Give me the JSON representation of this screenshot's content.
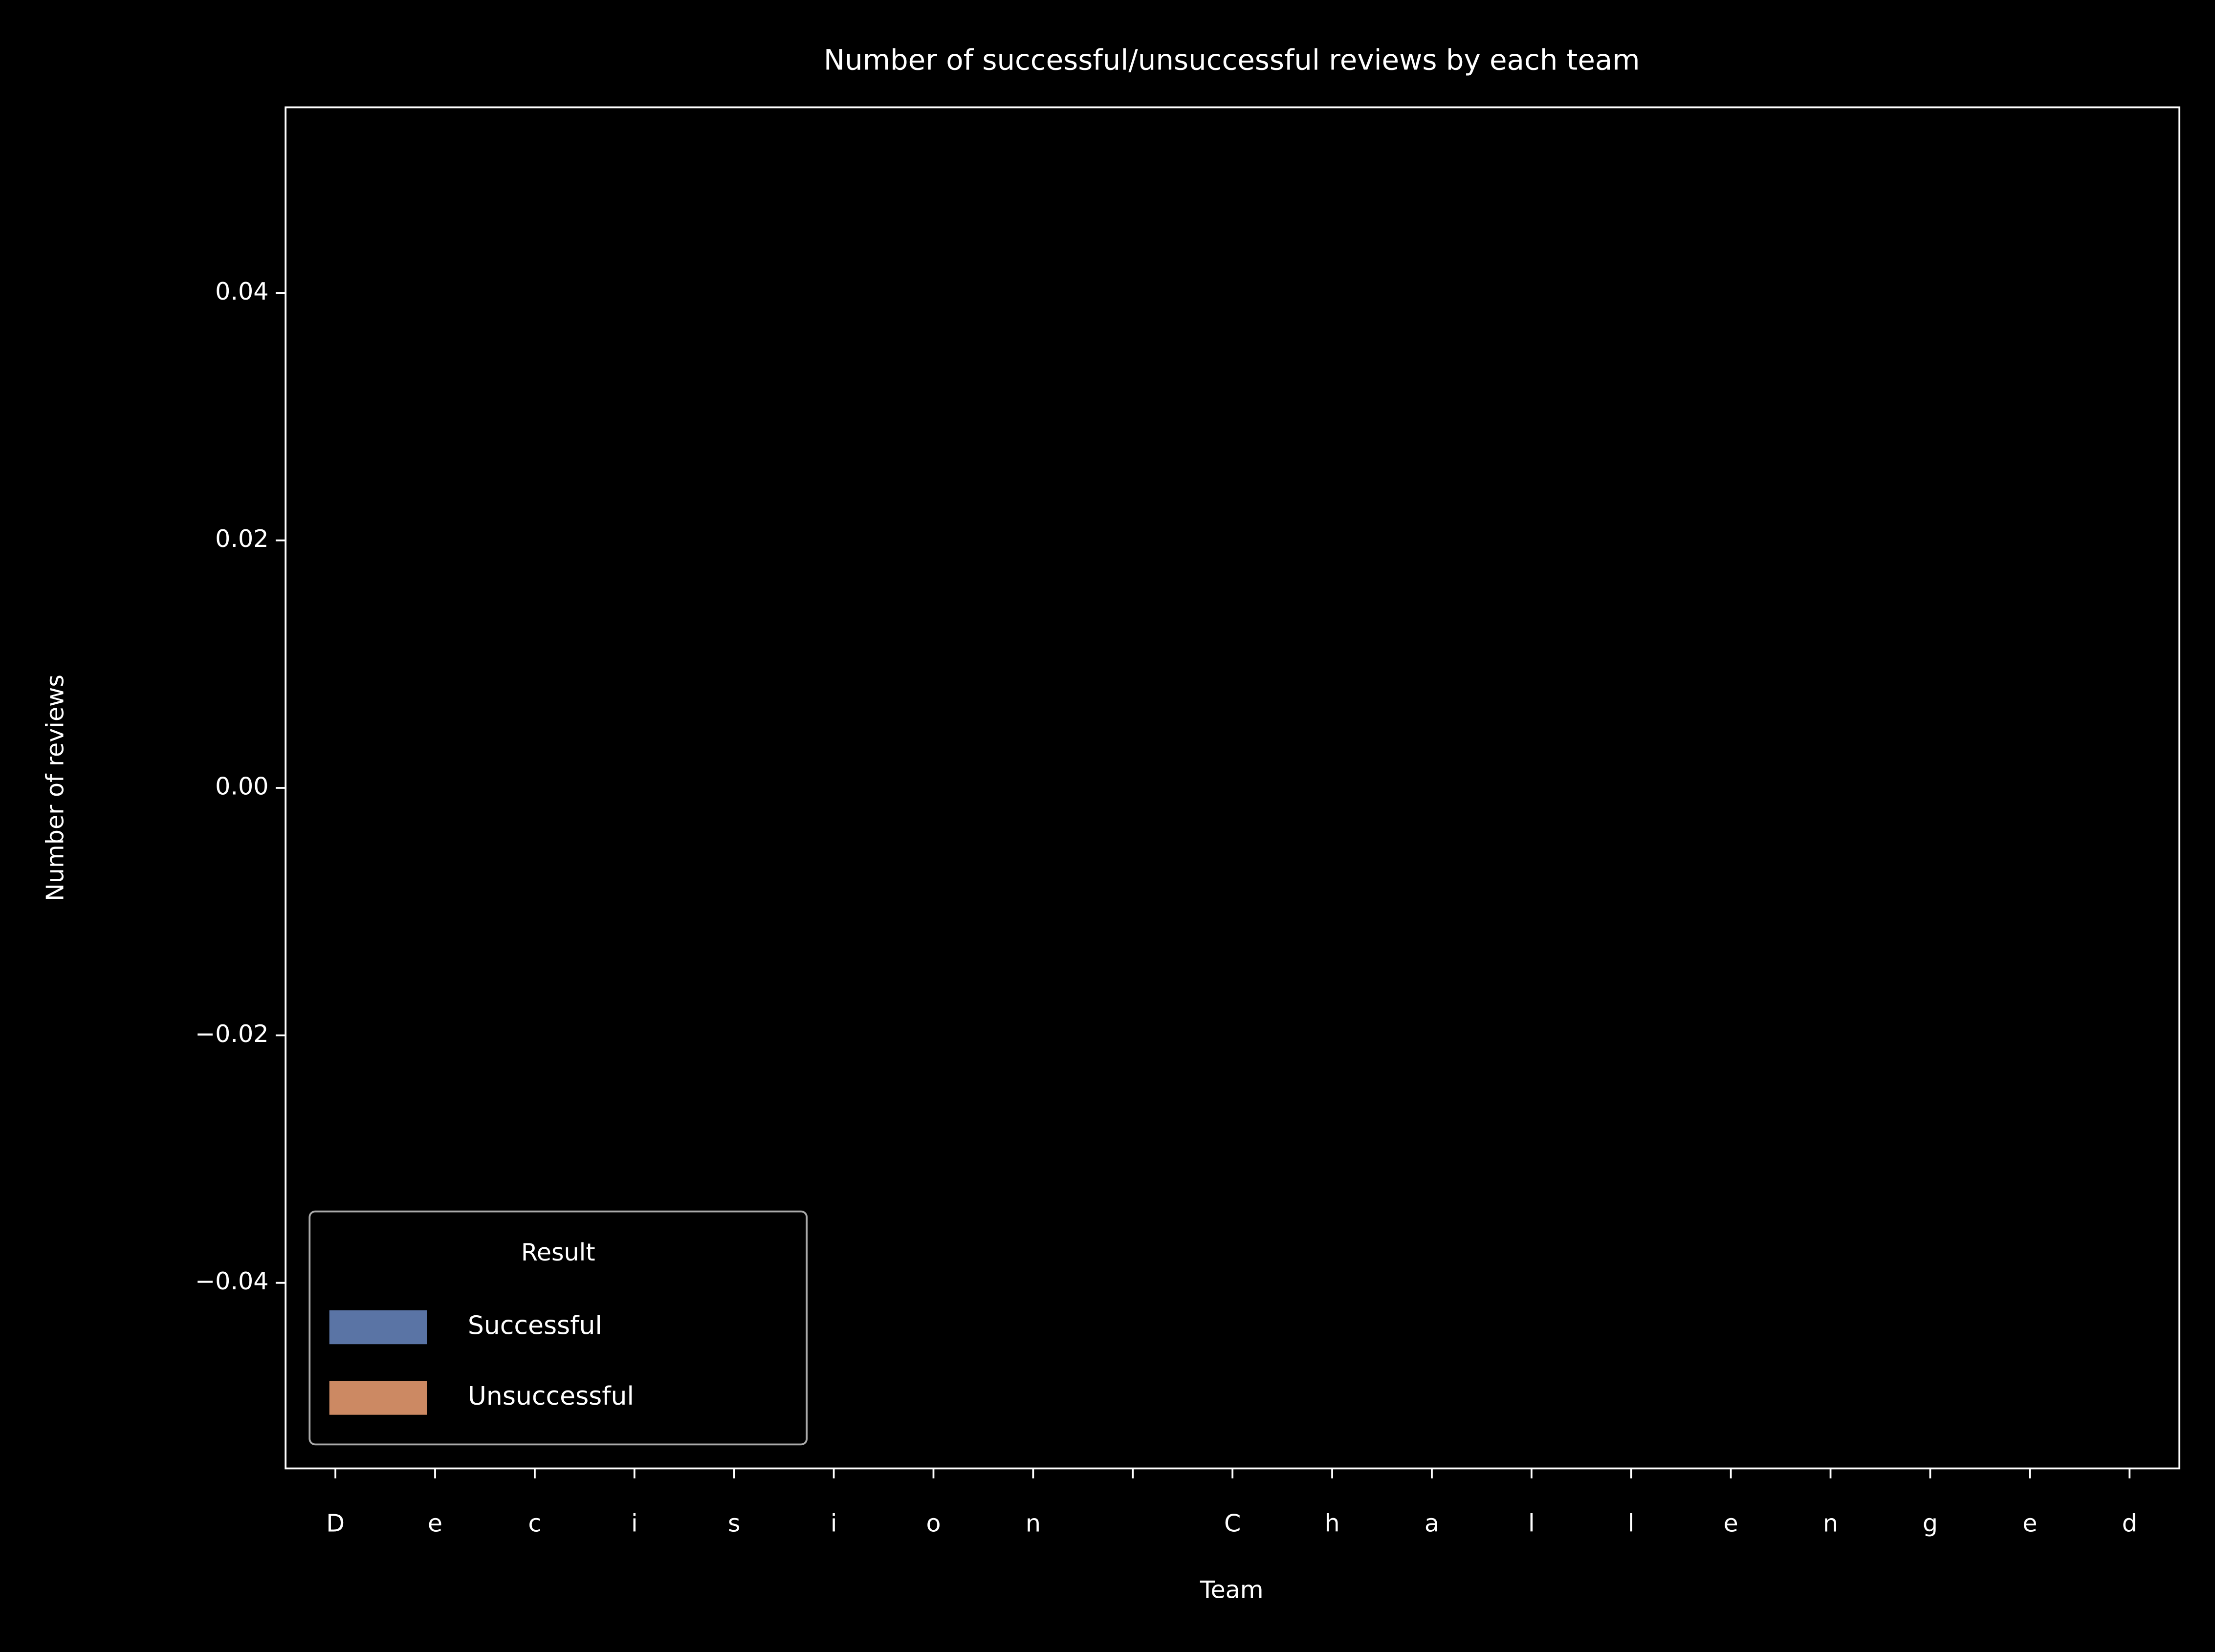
{
  "chart_data": {
    "type": "bar",
    "title": "Number of successful/unsuccessful reviews by each team",
    "x_label": "Team",
    "y_label": "Number of reviews",
    "categories": [
      "D",
      "e",
      "c",
      "i",
      "s",
      "i",
      "o",
      "n",
      null,
      "C",
      "h",
      "a",
      "l",
      "l",
      "e",
      "n",
      "g",
      "e",
      "d"
    ],
    "series": [
      {
        "name": "Successful",
        "color": "#5a74a5",
        "values": [
          0,
          0,
          0,
          0,
          0,
          0,
          0,
          0,
          0,
          0,
          0,
          0,
          0,
          0,
          0,
          0,
          0,
          0,
          0
        ]
      },
      {
        "name": "Unsuccessful",
        "color": "#cc8963",
        "values": [
          0,
          0,
          0,
          0,
          0,
          0,
          0,
          0,
          0,
          0,
          0,
          0,
          0,
          0,
          0,
          0,
          0,
          0,
          0
        ]
      }
    ],
    "ylim": [
      -0.055,
      0.055
    ],
    "yticks": [
      {
        "value": -0.04,
        "label": "−0.04"
      },
      {
        "value": -0.02,
        "label": "−0.02"
      },
      {
        "value": 0,
        "label": "0.00"
      },
      0.02,
      0.04
    ],
    "legend_title": "Result",
    "legend": "lower left",
    "grid": false
  }
}
